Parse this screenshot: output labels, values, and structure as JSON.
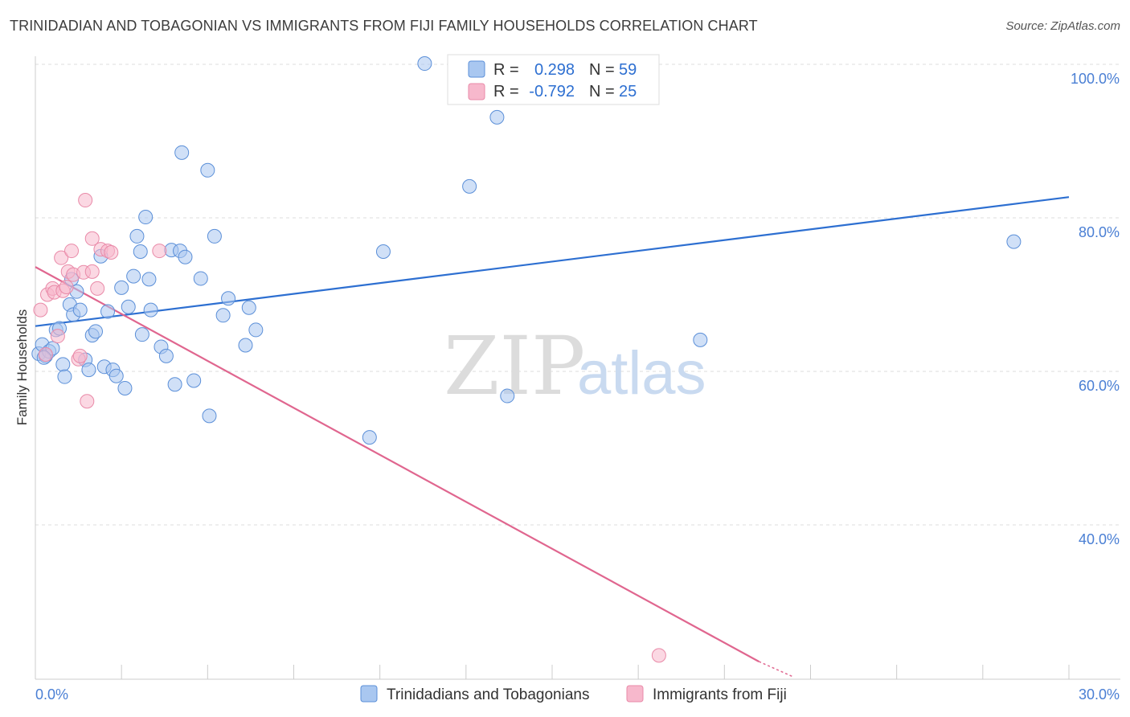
{
  "title": "TRINIDADIAN AND TOBAGONIAN VS IMMIGRANTS FROM FIJI FAMILY HOUSEHOLDS CORRELATION CHART",
  "source": "Source: ZipAtlas.com",
  "watermark": {
    "zip": "ZIP",
    "atlas": "atlas"
  },
  "colors": {
    "blue_fill": "#a9c7f0",
    "blue_stroke": "#5b8fd8",
    "blue_line": "#2d6fd1",
    "pink_fill": "#f7b8cc",
    "pink_stroke": "#e98aa8",
    "pink_line": "#e0668f",
    "grid": "#dddddd",
    "tick_label": "#4a7fd4"
  },
  "legend": {
    "rows": [
      {
        "r_label": "R =",
        "r_value": "0.298",
        "n_label": "N =",
        "n_value": "59"
      },
      {
        "r_label": "R =",
        "r_value": "-0.792",
        "n_label": "N =",
        "n_value": "25"
      }
    ]
  },
  "chart_data": {
    "type": "scatter",
    "title": "TRINIDADIAN AND TOBAGONIAN VS IMMIGRANTS FROM FIJI FAMILY HOUSEHOLDS CORRELATION CHART",
    "xlabel": "",
    "ylabel": "Family Households",
    "xlim": [
      0,
      30
    ],
    "ylim": [
      21,
      103
    ],
    "x_tick_labels": [
      {
        "value": 0,
        "label": "0.0%"
      },
      {
        "value": 30,
        "label": "30.0%"
      }
    ],
    "y_tick_labels": [
      {
        "value": 100,
        "label": "100.0%"
      },
      {
        "value": 80,
        "label": "80.0%"
      },
      {
        "value": 60,
        "label": "60.0%"
      },
      {
        "value": 40,
        "label": "40.0%"
      }
    ],
    "grid": true,
    "legend_position": "top-center",
    "series": [
      {
        "name": "Trinidadians and Tobagonians",
        "color": "#a9c7f0",
        "trend": {
          "x": [
            0,
            30
          ],
          "y": [
            65.9,
            82.7
          ]
        },
        "points": [
          {
            "x": 0.1,
            "y": 62.3
          },
          {
            "x": 0.2,
            "y": 63.5
          },
          {
            "x": 0.3,
            "y": 62.0
          },
          {
            "x": 0.4,
            "y": 62.6
          },
          {
            "x": 0.5,
            "y": 63.0
          },
          {
            "x": 0.6,
            "y": 65.4
          },
          {
            "x": 0.7,
            "y": 65.6
          },
          {
            "x": 0.8,
            "y": 60.9
          },
          {
            "x": 0.85,
            "y": 59.3
          },
          {
            "x": 1.0,
            "y": 68.7
          },
          {
            "x": 1.1,
            "y": 67.4
          },
          {
            "x": 1.2,
            "y": 70.4
          },
          {
            "x": 1.05,
            "y": 72.0
          },
          {
            "x": 1.3,
            "y": 68.0
          },
          {
            "x": 1.45,
            "y": 61.5
          },
          {
            "x": 1.55,
            "y": 60.2
          },
          {
            "x": 1.65,
            "y": 64.7
          },
          {
            "x": 1.75,
            "y": 65.2
          },
          {
            "x": 1.9,
            "y": 75.0
          },
          {
            "x": 2.0,
            "y": 60.6
          },
          {
            "x": 2.1,
            "y": 67.8
          },
          {
            "x": 2.25,
            "y": 60.2
          },
          {
            "x": 2.35,
            "y": 59.4
          },
          {
            "x": 2.5,
            "y": 70.9
          },
          {
            "x": 2.6,
            "y": 57.8
          },
          {
            "x": 2.7,
            "y": 68.4
          },
          {
            "x": 2.85,
            "y": 72.4
          },
          {
            "x": 2.95,
            "y": 77.6
          },
          {
            "x": 3.05,
            "y": 75.6
          },
          {
            "x": 3.1,
            "y": 64.8
          },
          {
            "x": 3.2,
            "y": 80.1
          },
          {
            "x": 3.3,
            "y": 72.0
          },
          {
            "x": 3.35,
            "y": 68.0
          },
          {
            "x": 3.65,
            "y": 63.2
          },
          {
            "x": 3.8,
            "y": 62.0
          },
          {
            "x": 3.95,
            "y": 75.8
          },
          {
            "x": 4.05,
            "y": 58.3
          },
          {
            "x": 4.2,
            "y": 75.7
          },
          {
            "x": 4.25,
            "y": 88.5
          },
          {
            "x": 4.35,
            "y": 74.9
          },
          {
            "x": 4.6,
            "y": 58.8
          },
          {
            "x": 4.8,
            "y": 72.1
          },
          {
            "x": 5.0,
            "y": 86.2
          },
          {
            "x": 5.05,
            "y": 54.2
          },
          {
            "x": 5.2,
            "y": 77.6
          },
          {
            "x": 5.45,
            "y": 67.3
          },
          {
            "x": 5.6,
            "y": 69.5
          },
          {
            "x": 6.1,
            "y": 63.4
          },
          {
            "x": 6.2,
            "y": 68.3
          },
          {
            "x": 6.4,
            "y": 65.4
          },
          {
            "x": 9.7,
            "y": 51.4
          },
          {
            "x": 10.1,
            "y": 75.6
          },
          {
            "x": 11.3,
            "y": 100.1
          },
          {
            "x": 12.6,
            "y": 84.1
          },
          {
            "x": 13.4,
            "y": 93.1
          },
          {
            "x": 13.7,
            "y": 56.8
          },
          {
            "x": 19.3,
            "y": 64.1
          },
          {
            "x": 28.4,
            "y": 76.9
          },
          {
            "x": 0.25,
            "y": 61.8
          }
        ]
      },
      {
        "name": "Immigrants from Fiji",
        "color": "#f7b8cc",
        "trend": {
          "x": [
            0,
            21.0
          ],
          "y": [
            73.6,
            22.2
          ],
          "dashed_extension": {
            "x": [
              21.0,
              22.0
            ],
            "y": [
              22.2,
              20.2
            ]
          }
        },
        "points": [
          {
            "x": 0.15,
            "y": 68.0
          },
          {
            "x": 0.3,
            "y": 62.2
          },
          {
            "x": 0.35,
            "y": 70.0
          },
          {
            "x": 0.5,
            "y": 70.8
          },
          {
            "x": 0.55,
            "y": 70.3
          },
          {
            "x": 0.65,
            "y": 64.6
          },
          {
            "x": 0.8,
            "y": 70.5
          },
          {
            "x": 0.9,
            "y": 71.0
          },
          {
            "x": 0.75,
            "y": 74.8
          },
          {
            "x": 0.95,
            "y": 73.0
          },
          {
            "x": 1.1,
            "y": 72.6
          },
          {
            "x": 1.05,
            "y": 75.7
          },
          {
            "x": 1.25,
            "y": 61.6
          },
          {
            "x": 1.3,
            "y": 62.0
          },
          {
            "x": 1.4,
            "y": 72.9
          },
          {
            "x": 1.45,
            "y": 82.3
          },
          {
            "x": 1.5,
            "y": 56.1
          },
          {
            "x": 1.65,
            "y": 73.0
          },
          {
            "x": 1.65,
            "y": 77.3
          },
          {
            "x": 1.8,
            "y": 70.8
          },
          {
            "x": 1.9,
            "y": 75.9
          },
          {
            "x": 2.1,
            "y": 75.7
          },
          {
            "x": 2.2,
            "y": 75.5
          },
          {
            "x": 3.6,
            "y": 75.7
          },
          {
            "x": 18.1,
            "y": 23.0
          }
        ]
      }
    ]
  }
}
